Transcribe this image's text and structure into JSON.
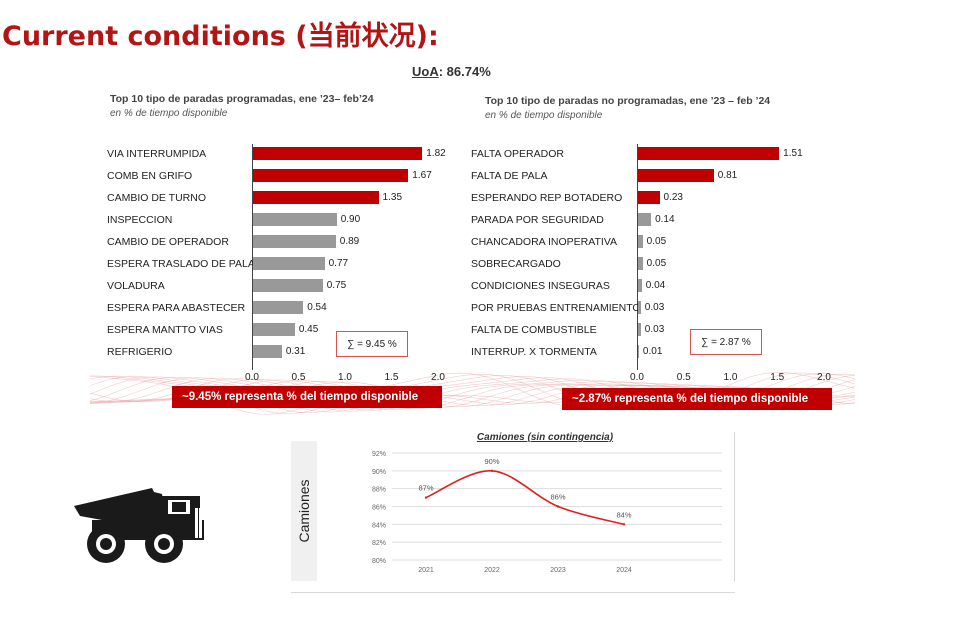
{
  "page": {
    "title": "Current conditions (当前状况):",
    "uoa_label": "UoA",
    "uoa_value": ": 86.74%"
  },
  "colors": {
    "accent": "#c00000",
    "gray_bar": "#999999",
    "line": "#e02020",
    "title": "#b21515"
  },
  "chart_data": [
    {
      "type": "bar",
      "orientation": "horizontal",
      "title": "Top 10 tipo de paradas programadas, ene ’23– feb’24",
      "subtitle": "en % de tiempo disponible",
      "categories": [
        "VIA INTERRUMPIDA",
        "COMB EN GRIFO",
        "CAMBIO DE TURNO",
        "INSPECCION",
        "CAMBIO DE OPERADOR",
        "ESPERA TRASLADO DE PALA",
        "VOLADURA",
        "ESPERA PARA ABASTECER",
        "ESPERA MANTTO VIAS",
        "REFRIGERIO"
      ],
      "values": [
        1.82,
        1.67,
        1.35,
        0.9,
        0.89,
        0.77,
        0.75,
        0.54,
        0.45,
        0.31
      ],
      "value_labels": [
        "1.82",
        "1.67",
        "1.35",
        "0.90",
        "0.89",
        "0.77",
        "0.75",
        "0.54",
        "0.45",
        "0.31"
      ],
      "highlight_count": 3,
      "xlim": [
        0,
        2.0
      ],
      "xticks": [
        "0.0",
        "0.5",
        "1.0",
        "1.5",
        "2.0"
      ],
      "sum_label": "∑ = 9.45 %",
      "callout": "~9.45%  representa % del tiempo disponible"
    },
    {
      "type": "bar",
      "orientation": "horizontal",
      "title": "Top 10 tipo de paradas no programadas, ene ’23 – feb ’24",
      "subtitle": "en % de tiempo disponible",
      "categories": [
        "FALTA OPERADOR",
        "FALTA DE PALA",
        "ESPERANDO REP BOTADERO",
        "PARADA POR SEGURIDAD",
        "CHANCADORA INOPERATIVA",
        "SOBRECARGADO",
        "CONDICIONES INSEGURAS",
        "POR PRUEBAS ENTRENAMIENTO",
        "FALTA DE COMBUSTIBLE",
        "INTERRUP. X TORMENTA"
      ],
      "values": [
        1.51,
        0.81,
        0.23,
        0.14,
        0.05,
        0.05,
        0.04,
        0.03,
        0.03,
        0.01
      ],
      "value_labels": [
        "1.51",
        "0.81",
        "0.23",
        "0.14",
        "0.05",
        "0.05",
        "0.04",
        "0.03",
        "0.03",
        "0.01"
      ],
      "highlight_count": 3,
      "xlim": [
        0,
        2.0
      ],
      "xticks": [
        "0.0",
        "0.5",
        "1.0",
        "1.5",
        "2.0"
      ],
      "sum_label": "∑ = 2.87 %",
      "callout": "~2.87%  representa % del tiempo disponible"
    },
    {
      "type": "line",
      "title": "Camiones (sin contingencia)",
      "ylabel": "Camiones",
      "categories": [
        "2021",
        "2022",
        "2023",
        "2024"
      ],
      "values": [
        87,
        90,
        86,
        84
      ],
      "value_labels": [
        "87%",
        "90%",
        "86%",
        "84%"
      ],
      "ylim": [
        80,
        92
      ],
      "yticks": [
        "92%",
        "90%",
        "88%",
        "86%",
        "84%",
        "82%",
        "80%"
      ],
      "grid": true
    }
  ]
}
